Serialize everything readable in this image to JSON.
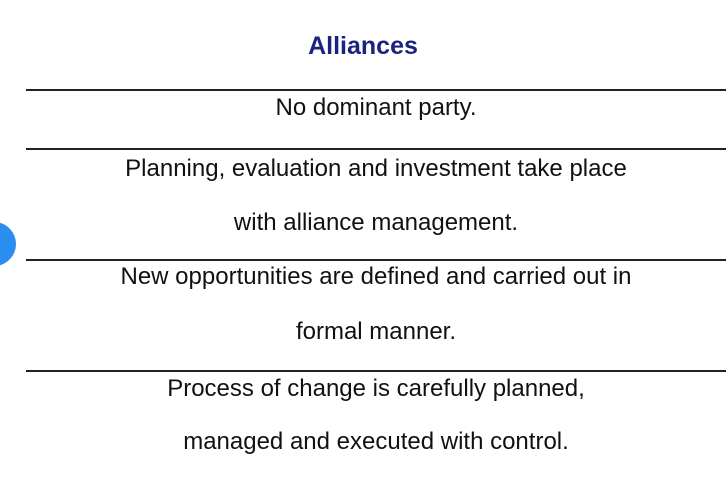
{
  "title": "Alliances",
  "rows": [
    {
      "lines": [
        "No dominant party."
      ]
    },
    {
      "lines": [
        "Planning, evaluation and investment take place",
        "with alliance management."
      ]
    },
    {
      "lines": [
        "New opportunities are defined and carried out in",
        "formal manner."
      ]
    },
    {
      "lines": [
        "Process of change is carefully planned,",
        "managed and executed with control."
      ]
    }
  ],
  "colors": {
    "title": "#1a237e",
    "badge": "#2a8df0",
    "rule": "#222222"
  }
}
